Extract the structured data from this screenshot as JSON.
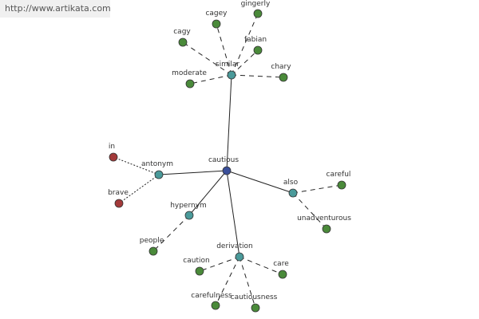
{
  "header": {
    "url": "http://www.artikata.com"
  },
  "nodes": [
    {
      "label": "cautious"
    },
    {
      "label": "similar"
    },
    {
      "label": "cagey"
    },
    {
      "label": "gingerly"
    },
    {
      "label": "cagy"
    },
    {
      "label": "fabian"
    },
    {
      "label": "chary"
    },
    {
      "label": "moderate"
    },
    {
      "label": "antonym"
    },
    {
      "label": "in"
    },
    {
      "label": "brave"
    },
    {
      "label": "also"
    },
    {
      "label": "careful"
    },
    {
      "label": "unadventurous"
    },
    {
      "label": "hypernym"
    },
    {
      "label": "people"
    },
    {
      "label": "derivation"
    },
    {
      "label": "caution"
    },
    {
      "label": "care"
    },
    {
      "label": "carefulness"
    },
    {
      "label": "cautiousness"
    }
  ]
}
